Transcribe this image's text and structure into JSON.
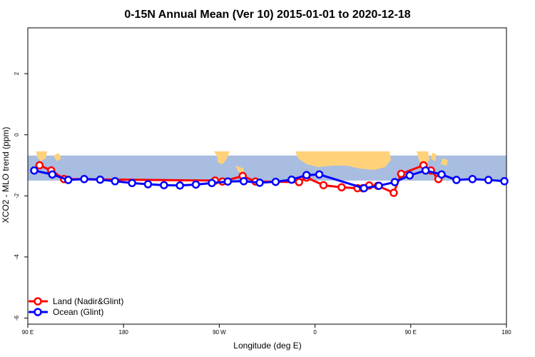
{
  "chart_data": {
    "type": "line",
    "title": "0-15N Annual Mean (Ver 10)   2015-01-01 to 2020-12-18",
    "xlabel": "Longitude (deg E)",
    "ylabel": "XCO2 - MLO trend (ppm)",
    "xlim": [
      90,
      540
    ],
    "ylim": [
      -6.2,
      3.5
    ],
    "x_ticks": [
      {
        "value": 90,
        "label": "90 E"
      },
      {
        "value": 180,
        "label": "180"
      },
      {
        "value": 270,
        "label": "90 W"
      },
      {
        "value": 360,
        "label": "0"
      },
      {
        "value": 450,
        "label": "90 E"
      },
      {
        "value": 540,
        "label": "180"
      }
    ],
    "y_ticks": [
      {
        "value": -6,
        "label": "-6"
      },
      {
        "value": -4,
        "label": "-4"
      },
      {
        "value": -2,
        "label": "-2"
      },
      {
        "value": 0,
        "label": "0"
      },
      {
        "value": 2,
        "label": "2"
      }
    ],
    "map_band": {
      "lat_range": "0-15N",
      "y_range": [
        -1.5,
        -0.68
      ]
    },
    "legend_position": "bottom-left",
    "series": [
      {
        "name": "Land (Nadir&Glint)",
        "color": "#ff0000",
        "points": [
          [
            101,
            -1.0
          ],
          [
            112,
            -1.17
          ],
          [
            124,
            -1.45
          ],
          [
            266,
            -1.5
          ],
          [
            273,
            -1.53
          ],
          [
            292,
            -1.35
          ],
          [
            304,
            -1.53
          ],
          [
            345,
            -1.55
          ],
          [
            352,
            -1.4
          ],
          [
            368,
            -1.65
          ],
          [
            385,
            -1.72
          ],
          [
            400,
            -1.75
          ],
          [
            405,
            -1.75
          ],
          [
            411,
            -1.66
          ],
          [
            419,
            -1.67
          ],
          [
            434,
            -1.9
          ],
          [
            441,
            -1.28
          ],
          [
            462,
            -1.0
          ],
          [
            469,
            -1.17
          ],
          [
            476,
            -1.45
          ]
        ]
      },
      {
        "name": "Ocean (Glint)",
        "color": "#0000ff",
        "points": [
          [
            96,
            -1.17
          ],
          [
            113,
            -1.3
          ],
          [
            128,
            -1.48
          ],
          [
            143,
            -1.45
          ],
          [
            158,
            -1.47
          ],
          [
            172,
            -1.52
          ],
          [
            188,
            -1.58
          ],
          [
            203,
            -1.62
          ],
          [
            218,
            -1.65
          ],
          [
            233,
            -1.66
          ],
          [
            248,
            -1.63
          ],
          [
            263,
            -1.58
          ],
          [
            278,
            -1.53
          ],
          [
            293,
            -1.52
          ],
          [
            308,
            -1.57
          ],
          [
            323,
            -1.54
          ],
          [
            338,
            -1.47
          ],
          [
            352,
            -1.32
          ],
          [
            364,
            -1.3
          ],
          [
            406,
            -1.75
          ],
          [
            420,
            -1.67
          ],
          [
            435,
            -1.55
          ],
          [
            449,
            -1.33
          ],
          [
            464,
            -1.17
          ],
          [
            479,
            -1.3
          ],
          [
            493,
            -1.48
          ],
          [
            508,
            -1.45
          ],
          [
            523,
            -1.48
          ],
          [
            538,
            -1.52
          ]
        ]
      }
    ]
  },
  "colors": {
    "ocean": "#a8bde0",
    "land": "#ffd27a",
    "axis": "#000000"
  }
}
